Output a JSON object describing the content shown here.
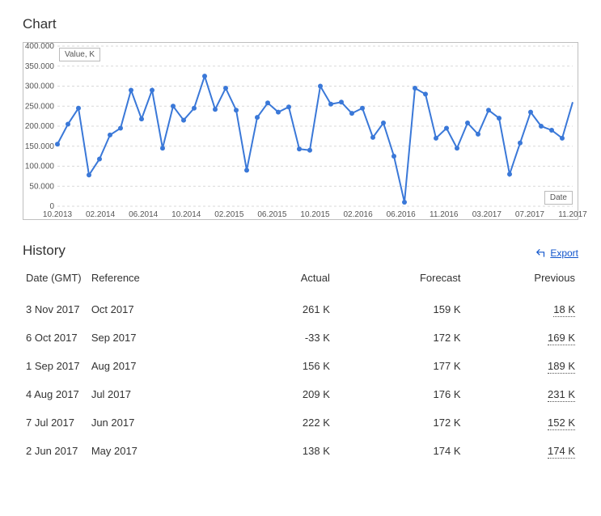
{
  "chart": {
    "section_title": "Chart",
    "type": "line",
    "y_axis_title": "Value, K",
    "x_axis_title": "Date",
    "line_color": "#3a78d8",
    "marker_color": "#3a78d8",
    "marker_radius": 3,
    "line_width": 2,
    "grid_color": "#d9d9d9",
    "border_color": "#bfbfbf",
    "background_color": "#ffffff",
    "ylim": [
      0,
      400
    ],
    "ytick_step": 50,
    "ytick_labels": [
      "0",
      "50.000",
      "100.000",
      "150.000",
      "200.000",
      "250.000",
      "300.000",
      "350.000",
      "400.000"
    ],
    "ytick_fontsize": 10,
    "xtick_labels": [
      "10.2013",
      "02.2014",
      "06.2014",
      "10.2014",
      "02.2015",
      "06.2015",
      "10.2015",
      "02.2016",
      "06.2016",
      "11.2016",
      "03.2017",
      "07.2017",
      "11.2017"
    ],
    "xtick_fontsize": 10,
    "series": {
      "x": [
        0,
        1,
        2,
        3,
        4,
        5,
        6,
        7,
        8,
        9,
        10,
        11,
        12,
        13,
        14,
        15,
        16,
        17,
        18,
        19,
        20,
        21,
        22,
        23,
        24,
        25,
        26,
        27,
        28,
        29,
        30,
        31,
        32,
        33,
        34,
        35,
        36,
        37,
        38,
        39,
        40,
        41,
        42,
        43,
        44,
        45,
        46,
        47,
        48
      ],
      "y": [
        155,
        205,
        245,
        78,
        118,
        178,
        195,
        290,
        218,
        290,
        145,
        250,
        215,
        245,
        325,
        242,
        295,
        240,
        90,
        222,
        258,
        235,
        248,
        143,
        140,
        300,
        255,
        260,
        232,
        245,
        172,
        208,
        125,
        10,
        295,
        280,
        170,
        195,
        145,
        208,
        180,
        240,
        220,
        80,
        158,
        235,
        200,
        190,
        170
      ]
    },
    "extra_tail": {
      "x": [
        48,
        49
      ],
      "y": [
        170,
        260
      ]
    }
  },
  "history": {
    "section_title": "History",
    "export_label": "Export",
    "columns": {
      "date": "Date (GMT)",
      "reference": "Reference",
      "actual": "Actual",
      "forecast": "Forecast",
      "previous": "Previous"
    },
    "rows": [
      {
        "date": "3 Nov 2017",
        "reference": "Oct 2017",
        "actual": "261 K",
        "forecast": "159 K",
        "previous": "18 K"
      },
      {
        "date": "6 Oct 2017",
        "reference": "Sep 2017",
        "actual": "-33 K",
        "forecast": "172 K",
        "previous": "169 K"
      },
      {
        "date": "1 Sep 2017",
        "reference": "Aug 2017",
        "actual": "156 K",
        "forecast": "177 K",
        "previous": "189 K"
      },
      {
        "date": "4 Aug 2017",
        "reference": "Jul 2017",
        "actual": "209 K",
        "forecast": "176 K",
        "previous": "231 K"
      },
      {
        "date": "7 Jul 2017",
        "reference": "Jun 2017",
        "actual": "222 K",
        "forecast": "172 K",
        "previous": "152 K"
      },
      {
        "date": "2 Jun 2017",
        "reference": "May 2017",
        "actual": "138 K",
        "forecast": "174 K",
        "previous": "174 K"
      }
    ]
  }
}
